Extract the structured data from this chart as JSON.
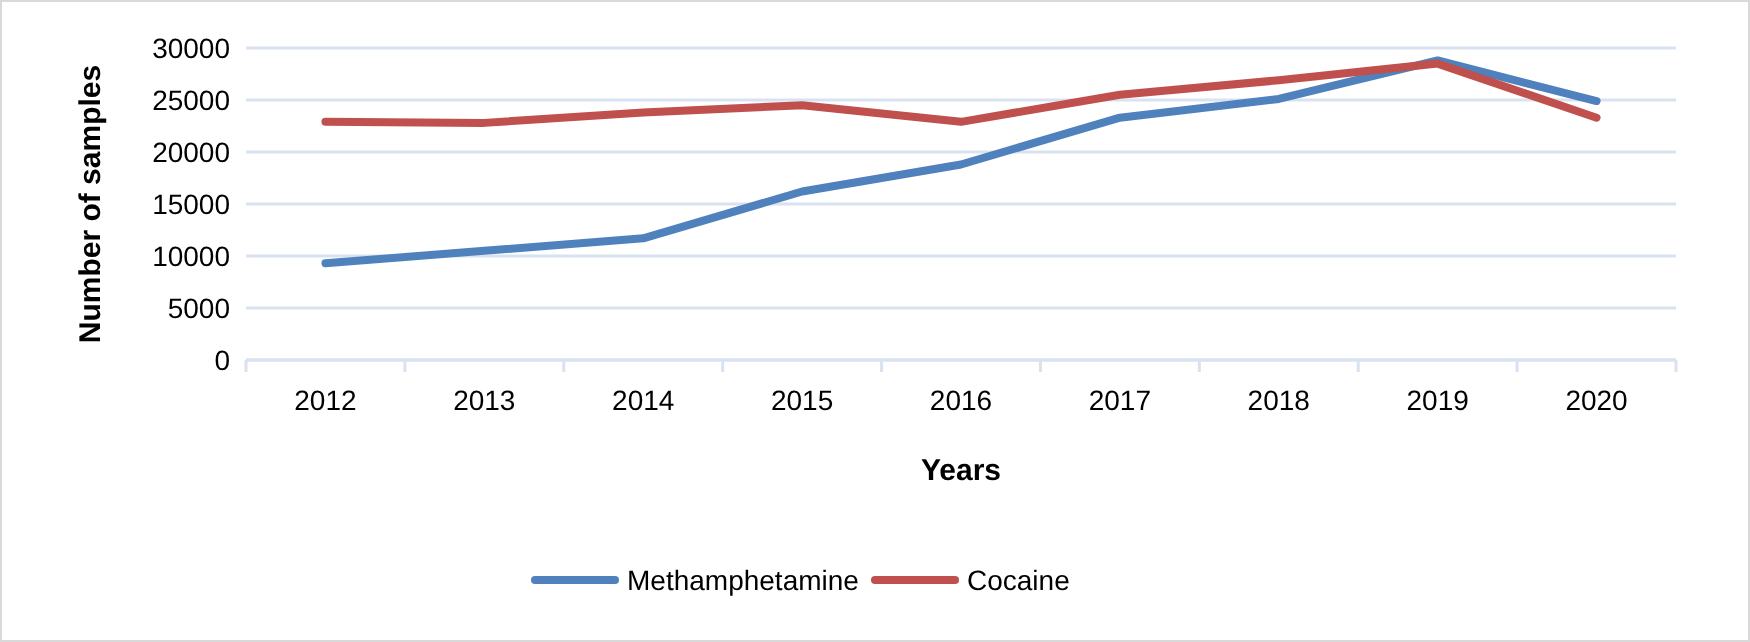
{
  "chart_data": {
    "type": "line",
    "xlabel": "Years",
    "ylabel": "Number of samples",
    "categories": [
      "2012",
      "2013",
      "2014",
      "2015",
      "2016",
      "2017",
      "2018",
      "2019",
      "2020"
    ],
    "series": [
      {
        "name": "Methamphetamine",
        "color": "#4f81bd",
        "values": [
          9300,
          10500,
          11700,
          16200,
          18800,
          23300,
          25100,
          28800,
          24900
        ]
      },
      {
        "name": "Cocaine",
        "color": "#c0504d",
        "values": [
          22900,
          22800,
          23800,
          24500,
          22900,
          25500,
          26900,
          28500,
          23300
        ]
      }
    ],
    "ylim": [
      0,
      30000
    ],
    "yticks": [
      0,
      5000,
      10000,
      15000,
      20000,
      25000,
      30000
    ],
    "grid": "y",
    "legend": "bottom",
    "marker": "none",
    "line_style": "solid"
  }
}
